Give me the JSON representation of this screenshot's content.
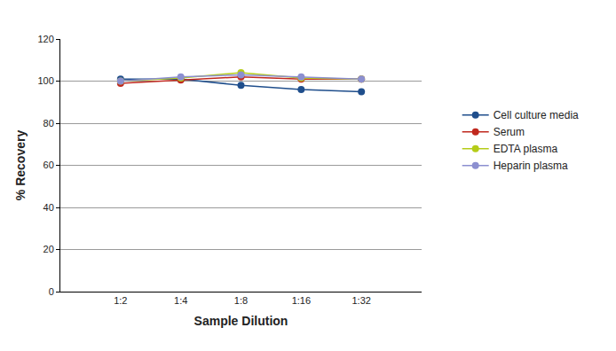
{
  "chart_data": {
    "type": "line",
    "x_label": "Sample Dilution",
    "y_label": "% Recovery",
    "categories": [
      "1:2",
      "1:4",
      "1:8",
      "1:16",
      "1:32"
    ],
    "series": [
      {
        "name": "Cell culture media",
        "color": "#1f4e8c",
        "values": [
          101,
          101,
          98,
          96,
          95
        ]
      },
      {
        "name": "Serum",
        "color": "#c0281e",
        "values": [
          99,
          100.5,
          102,
          101,
          101
        ]
      },
      {
        "name": "EDTA plasma",
        "color": "#b5cc18",
        "values": [
          100,
          101.5,
          104,
          101.5,
          101
        ]
      },
      {
        "name": "Heparin plasma",
        "color": "#8c8fd0",
        "values": [
          100,
          102,
          103,
          102,
          101
        ]
      }
    ],
    "ylim": [
      0,
      120
    ],
    "yticks": [
      0,
      20,
      40,
      60,
      80,
      100,
      120
    ],
    "grid": true,
    "legend": "right",
    "marker": "circle"
  }
}
